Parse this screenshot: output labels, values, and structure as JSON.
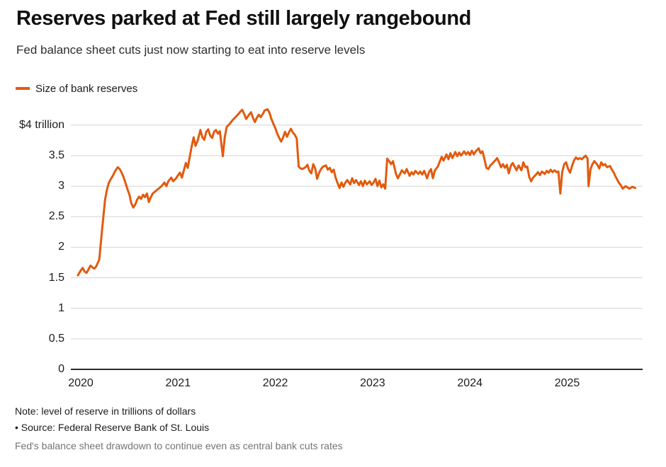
{
  "header": {
    "title": "Reserves parked at Fed still largely rangebound",
    "subtitle": "Fed balance sheet cuts just now starting to eat into reserve levels"
  },
  "legend": {
    "label": "Size of bank reserves",
    "color": "#e25a0e"
  },
  "footer": {
    "note": "Note: level of reserve in trillions of dollars",
    "source": "• Source: Federal Reserve Bank of St. Louis",
    "caption": "Fed's balance sheet drawdown to continue even as central bank cuts rates"
  },
  "chart_data": {
    "type": "line",
    "title": "Size of bank reserves",
    "unit": "trillions of dollars",
    "line_color": "#e25a0e",
    "grid": "horizontal",
    "legend_position": "top-left",
    "xlim": [
      2019.95,
      2025.83
    ],
    "ylim": [
      0,
      4.4
    ],
    "x_ticks": [
      "2020",
      "2021",
      "2022",
      "2023",
      "2024",
      "2025"
    ],
    "y_ticks": [
      "$4 trillion",
      "3.5",
      "3",
      "2.5",
      "2",
      "1.5",
      "1",
      "0.5",
      "0"
    ],
    "y_tick_values": [
      4,
      3.5,
      3,
      2.5,
      2,
      1.5,
      1,
      0.5,
      0
    ],
    "series": [
      {
        "name": "Size of bank reserves",
        "points": [
          [
            2019.97,
            1.54
          ],
          [
            2020.0,
            1.62
          ],
          [
            2020.02,
            1.66
          ],
          [
            2020.04,
            1.6
          ],
          [
            2020.06,
            1.58
          ],
          [
            2020.08,
            1.64
          ],
          [
            2020.1,
            1.7
          ],
          [
            2020.12,
            1.67
          ],
          [
            2020.14,
            1.65
          ],
          [
            2020.16,
            1.69
          ],
          [
            2020.19,
            1.8
          ],
          [
            2020.22,
            2.3
          ],
          [
            2020.25,
            2.78
          ],
          [
            2020.27,
            2.95
          ],
          [
            2020.29,
            3.06
          ],
          [
            2020.31,
            3.12
          ],
          [
            2020.33,
            3.17
          ],
          [
            2020.35,
            3.24
          ],
          [
            2020.38,
            3.31
          ],
          [
            2020.4,
            3.28
          ],
          [
            2020.42,
            3.22
          ],
          [
            2020.44,
            3.15
          ],
          [
            2020.46,
            3.05
          ],
          [
            2020.48,
            2.95
          ],
          [
            2020.5,
            2.86
          ],
          [
            2020.52,
            2.72
          ],
          [
            2020.54,
            2.65
          ],
          [
            2020.56,
            2.7
          ],
          [
            2020.58,
            2.78
          ],
          [
            2020.6,
            2.83
          ],
          [
            2020.62,
            2.79
          ],
          [
            2020.64,
            2.86
          ],
          [
            2020.66,
            2.82
          ],
          [
            2020.68,
            2.88
          ],
          [
            2020.7,
            2.74
          ],
          [
            2020.72,
            2.82
          ],
          [
            2020.74,
            2.88
          ],
          [
            2020.77,
            2.92
          ],
          [
            2020.8,
            2.96
          ],
          [
            2020.83,
            3.0
          ],
          [
            2020.86,
            3.06
          ],
          [
            2020.88,
            3.0
          ],
          [
            2020.9,
            3.08
          ],
          [
            2020.93,
            3.14
          ],
          [
            2020.95,
            3.08
          ],
          [
            2020.98,
            3.13
          ],
          [
            2021.0,
            3.18
          ],
          [
            2021.02,
            3.22
          ],
          [
            2021.04,
            3.14
          ],
          [
            2021.06,
            3.26
          ],
          [
            2021.08,
            3.38
          ],
          [
            2021.1,
            3.3
          ],
          [
            2021.12,
            3.48
          ],
          [
            2021.14,
            3.65
          ],
          [
            2021.16,
            3.8
          ],
          [
            2021.18,
            3.66
          ],
          [
            2021.2,
            3.74
          ],
          [
            2021.23,
            3.92
          ],
          [
            2021.25,
            3.8
          ],
          [
            2021.27,
            3.76
          ],
          [
            2021.29,
            3.89
          ],
          [
            2021.31,
            3.93
          ],
          [
            2021.33,
            3.83
          ],
          [
            2021.35,
            3.79
          ],
          [
            2021.37,
            3.89
          ],
          [
            2021.39,
            3.92
          ],
          [
            2021.41,
            3.86
          ],
          [
            2021.43,
            3.9
          ],
          [
            2021.46,
            3.49
          ],
          [
            2021.48,
            3.8
          ],
          [
            2021.5,
            3.97
          ],
          [
            2021.53,
            4.02
          ],
          [
            2021.56,
            4.08
          ],
          [
            2021.59,
            4.13
          ],
          [
            2021.62,
            4.18
          ],
          [
            2021.64,
            4.22
          ],
          [
            2021.66,
            4.25
          ],
          [
            2021.68,
            4.18
          ],
          [
            2021.7,
            4.1
          ],
          [
            2021.73,
            4.17
          ],
          [
            2021.75,
            4.21
          ],
          [
            2021.77,
            4.12
          ],
          [
            2021.79,
            4.05
          ],
          [
            2021.81,
            4.12
          ],
          [
            2021.83,
            4.17
          ],
          [
            2021.85,
            4.13
          ],
          [
            2021.87,
            4.18
          ],
          [
            2021.89,
            4.24
          ],
          [
            2021.92,
            4.26
          ],
          [
            2021.94,
            4.2
          ],
          [
            2021.96,
            4.1
          ],
          [
            2021.98,
            4.02
          ],
          [
            2022.0,
            3.95
          ],
          [
            2022.02,
            3.86
          ],
          [
            2022.04,
            3.79
          ],
          [
            2022.06,
            3.73
          ],
          [
            2022.08,
            3.8
          ],
          [
            2022.1,
            3.89
          ],
          [
            2022.12,
            3.81
          ],
          [
            2022.14,
            3.88
          ],
          [
            2022.16,
            3.94
          ],
          [
            2022.18,
            3.88
          ],
          [
            2022.2,
            3.84
          ],
          [
            2022.22,
            3.78
          ],
          [
            2022.24,
            3.32
          ],
          [
            2022.26,
            3.29
          ],
          [
            2022.28,
            3.28
          ],
          [
            2022.31,
            3.31
          ],
          [
            2022.33,
            3.35
          ],
          [
            2022.35,
            3.25
          ],
          [
            2022.37,
            3.21
          ],
          [
            2022.39,
            3.36
          ],
          [
            2022.41,
            3.29
          ],
          [
            2022.43,
            3.12
          ],
          [
            2022.45,
            3.22
          ],
          [
            2022.47,
            3.28
          ],
          [
            2022.49,
            3.32
          ],
          [
            2022.52,
            3.34
          ],
          [
            2022.54,
            3.27
          ],
          [
            2022.56,
            3.3
          ],
          [
            2022.58,
            3.23
          ],
          [
            2022.6,
            3.27
          ],
          [
            2022.62,
            3.14
          ],
          [
            2022.64,
            3.05
          ],
          [
            2022.66,
            2.97
          ],
          [
            2022.68,
            3.06
          ],
          [
            2022.7,
            2.99
          ],
          [
            2022.72,
            3.06
          ],
          [
            2022.74,
            3.1
          ],
          [
            2022.77,
            3.03
          ],
          [
            2022.79,
            3.13
          ],
          [
            2022.81,
            3.05
          ],
          [
            2022.83,
            3.1
          ],
          [
            2022.86,
            3.02
          ],
          [
            2022.88,
            3.08
          ],
          [
            2022.9,
            3.0
          ],
          [
            2022.92,
            3.09
          ],
          [
            2022.94,
            3.03
          ],
          [
            2022.97,
            3.08
          ],
          [
            2022.99,
            3.02
          ],
          [
            2023.01,
            3.06
          ],
          [
            2023.03,
            3.12
          ],
          [
            2023.05,
            3.0
          ],
          [
            2023.07,
            3.09
          ],
          [
            2023.09,
            2.98
          ],
          [
            2023.11,
            3.03
          ],
          [
            2023.13,
            2.96
          ],
          [
            2023.15,
            3.45
          ],
          [
            2023.17,
            3.41
          ],
          [
            2023.19,
            3.36
          ],
          [
            2023.21,
            3.41
          ],
          [
            2023.24,
            3.2
          ],
          [
            2023.26,
            3.13
          ],
          [
            2023.28,
            3.19
          ],
          [
            2023.3,
            3.26
          ],
          [
            2023.33,
            3.21
          ],
          [
            2023.35,
            3.28
          ],
          [
            2023.38,
            3.17
          ],
          [
            2023.4,
            3.23
          ],
          [
            2023.42,
            3.19
          ],
          [
            2023.44,
            3.25
          ],
          [
            2023.47,
            3.2
          ],
          [
            2023.49,
            3.24
          ],
          [
            2023.51,
            3.19
          ],
          [
            2023.53,
            3.25
          ],
          [
            2023.56,
            3.13
          ],
          [
            2023.58,
            3.23
          ],
          [
            2023.6,
            3.28
          ],
          [
            2023.62,
            3.13
          ],
          [
            2023.64,
            3.26
          ],
          [
            2023.67,
            3.32
          ],
          [
            2023.69,
            3.4
          ],
          [
            2023.71,
            3.48
          ],
          [
            2023.73,
            3.42
          ],
          [
            2023.76,
            3.52
          ],
          [
            2023.78,
            3.44
          ],
          [
            2023.8,
            3.54
          ],
          [
            2023.82,
            3.46
          ],
          [
            2023.85,
            3.56
          ],
          [
            2023.87,
            3.49
          ],
          [
            2023.89,
            3.55
          ],
          [
            2023.91,
            3.5
          ],
          [
            2023.94,
            3.57
          ],
          [
            2023.96,
            3.52
          ],
          [
            2023.98,
            3.56
          ],
          [
            2024.0,
            3.51
          ],
          [
            2024.02,
            3.58
          ],
          [
            2024.04,
            3.52
          ],
          [
            2024.06,
            3.57
          ],
          [
            2024.09,
            3.62
          ],
          [
            2024.11,
            3.54
          ],
          [
            2024.13,
            3.57
          ],
          [
            2024.15,
            3.44
          ],
          [
            2024.17,
            3.3
          ],
          [
            2024.19,
            3.28
          ],
          [
            2024.21,
            3.34
          ],
          [
            2024.23,
            3.37
          ],
          [
            2024.26,
            3.42
          ],
          [
            2024.28,
            3.46
          ],
          [
            2024.3,
            3.39
          ],
          [
            2024.32,
            3.31
          ],
          [
            2024.34,
            3.36
          ],
          [
            2024.36,
            3.3
          ],
          [
            2024.38,
            3.35
          ],
          [
            2024.4,
            3.21
          ],
          [
            2024.42,
            3.33
          ],
          [
            2024.44,
            3.38
          ],
          [
            2024.46,
            3.32
          ],
          [
            2024.48,
            3.26
          ],
          [
            2024.5,
            3.34
          ],
          [
            2024.53,
            3.26
          ],
          [
            2024.55,
            3.39
          ],
          [
            2024.57,
            3.31
          ],
          [
            2024.59,
            3.32
          ],
          [
            2024.61,
            3.15
          ],
          [
            2024.63,
            3.08
          ],
          [
            2024.65,
            3.14
          ],
          [
            2024.68,
            3.19
          ],
          [
            2024.7,
            3.23
          ],
          [
            2024.72,
            3.18
          ],
          [
            2024.74,
            3.24
          ],
          [
            2024.77,
            3.2
          ],
          [
            2024.79,
            3.25
          ],
          [
            2024.81,
            3.22
          ],
          [
            2024.83,
            3.27
          ],
          [
            2024.85,
            3.23
          ],
          [
            2024.87,
            3.26
          ],
          [
            2024.89,
            3.23
          ],
          [
            2024.91,
            3.24
          ],
          [
            2024.93,
            2.88
          ],
          [
            2024.95,
            3.24
          ],
          [
            2024.97,
            3.36
          ],
          [
            2024.99,
            3.39
          ],
          [
            2025.01,
            3.28
          ],
          [
            2025.03,
            3.22
          ],
          [
            2025.05,
            3.33
          ],
          [
            2025.07,
            3.42
          ],
          [
            2025.09,
            3.47
          ],
          [
            2025.11,
            3.44
          ],
          [
            2025.13,
            3.46
          ],
          [
            2025.15,
            3.44
          ],
          [
            2025.17,
            3.47
          ],
          [
            2025.19,
            3.5
          ],
          [
            2025.21,
            3.45
          ],
          [
            2025.22,
            3.0
          ],
          [
            2025.24,
            3.28
          ],
          [
            2025.26,
            3.36
          ],
          [
            2025.28,
            3.41
          ],
          [
            2025.31,
            3.35
          ],
          [
            2025.33,
            3.29
          ],
          [
            2025.35,
            3.39
          ],
          [
            2025.37,
            3.34
          ],
          [
            2025.39,
            3.36
          ],
          [
            2025.41,
            3.31
          ],
          [
            2025.44,
            3.33
          ],
          [
            2025.46,
            3.27
          ],
          [
            2025.48,
            3.22
          ],
          [
            2025.5,
            3.15
          ],
          [
            2025.53,
            3.06
          ],
          [
            2025.55,
            3.02
          ],
          [
            2025.57,
            2.96
          ],
          [
            2025.6,
            3.0
          ],
          [
            2025.62,
            2.98
          ],
          [
            2025.64,
            2.96
          ],
          [
            2025.67,
            2.99
          ],
          [
            2025.7,
            2.97
          ]
        ]
      }
    ]
  }
}
